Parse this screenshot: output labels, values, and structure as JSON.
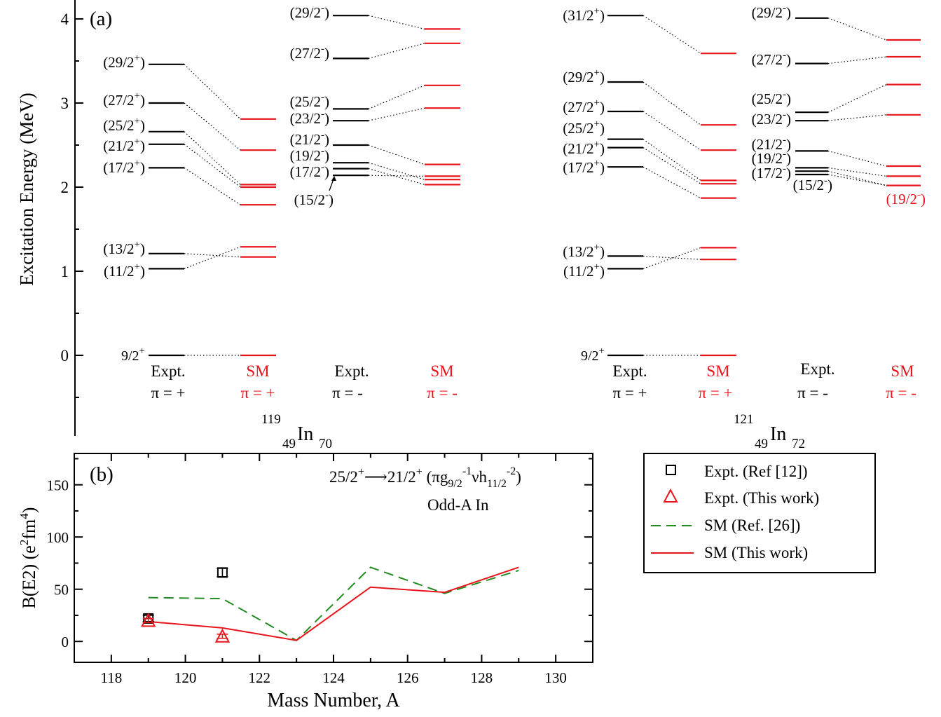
{
  "colors": {
    "expt": "#000000",
    "sm": "#e8141b",
    "sm_ref": "#228b22"
  },
  "panel_a": {
    "label": "(a)",
    "ylabel": "Excitation Energy (MeV)",
    "yticks": [
      "0",
      "1",
      "2",
      "3",
      "4"
    ],
    "ylim": [
      -0.85,
      4.2
    ],
    "nuclei": [
      {
        "A": "119",
        "Z": "49",
        "symbol": "In",
        "N": "70"
      },
      {
        "A": "121",
        "Z": "49",
        "symbol": "In",
        "N": "72"
      }
    ],
    "columns": [
      {
        "id": "in119-expt-pos",
        "name": "Expt.",
        "parity_label": "π = +",
        "type": "expt",
        "levels": [
          {
            "J": "9/2",
            "p": "+",
            "E": 0.0
          },
          {
            "J": "11/2",
            "p": "+",
            "E": 1.03
          },
          {
            "J": "13/2",
            "p": "+",
            "E": 1.21
          },
          {
            "J": "17/2",
            "p": "+",
            "E": 2.23
          },
          {
            "J": "21/2",
            "p": "+",
            "E": 2.51
          },
          {
            "J": "25/2",
            "p": "+",
            "E": 2.66
          },
          {
            "J": "27/2",
            "p": "+",
            "E": 3.0
          },
          {
            "J": "29/2",
            "p": "+",
            "E": 3.46
          }
        ]
      },
      {
        "id": "in119-sm-pos",
        "name": "SM",
        "parity_label": "π = +",
        "type": "sm",
        "levels": [
          {
            "E": 0.0
          },
          {
            "E": 1.17
          },
          {
            "E": 1.29
          },
          {
            "E": 1.79
          },
          {
            "E": 2.0
          },
          {
            "E": 2.03
          },
          {
            "E": 2.44
          },
          {
            "E": 2.81
          }
        ]
      },
      {
        "id": "in119-expt-neg",
        "name": "Expt.",
        "parity_label": "π = -",
        "type": "expt",
        "levels": [
          {
            "J": "15/2",
            "p": "-",
            "E": 2.14
          },
          {
            "J": "17/2",
            "p": "-",
            "E": 2.22
          },
          {
            "J": "19/2",
            "p": "-",
            "E": 2.29
          },
          {
            "J": "21/2",
            "p": "-",
            "E": 2.5
          },
          {
            "J": "23/2",
            "p": "-",
            "E": 2.79
          },
          {
            "J": "25/2",
            "p": "-",
            "E": 2.93
          },
          {
            "J": "27/2",
            "p": "-",
            "E": 3.53
          },
          {
            "J": "29/2",
            "p": "-",
            "E": 4.04
          }
        ]
      },
      {
        "id": "in119-sm-neg",
        "name": "SM",
        "parity_label": "π = -",
        "type": "sm",
        "levels": [
          {
            "E": 2.03
          },
          {
            "E": 2.09
          },
          {
            "E": 2.13
          },
          {
            "E": 2.27
          },
          {
            "E": 2.94
          },
          {
            "E": 3.21
          },
          {
            "E": 3.71
          },
          {
            "E": 3.88
          }
        ]
      },
      {
        "id": "in121-expt-pos",
        "name": "Expt.",
        "parity_label": "π = +",
        "type": "expt",
        "levels": [
          {
            "J": "9/2",
            "p": "+",
            "E": 0.0
          },
          {
            "J": "11/2",
            "p": "+",
            "E": 1.03
          },
          {
            "J": "13/2",
            "p": "+",
            "E": 1.18
          },
          {
            "J": "17/2",
            "p": "+",
            "E": 2.24
          },
          {
            "J": "21/2",
            "p": "+",
            "E": 2.47
          },
          {
            "J": "25/2",
            "p": "+",
            "E": 2.57
          },
          {
            "J": "27/2",
            "p": "+",
            "E": 2.9
          },
          {
            "J": "29/2",
            "p": "+",
            "E": 3.25
          },
          {
            "J": "31/2",
            "p": "+",
            "E": 4.04
          }
        ]
      },
      {
        "id": "in121-sm-pos",
        "name": "SM",
        "parity_label": "π = +",
        "type": "sm",
        "levels": [
          {
            "E": 0.0
          },
          {
            "E": 1.14
          },
          {
            "E": 1.28
          },
          {
            "E": 1.87
          },
          {
            "E": 2.04
          },
          {
            "E": 2.08
          },
          {
            "E": 2.44
          },
          {
            "E": 2.74
          },
          {
            "E": 3.59
          }
        ]
      },
      {
        "id": "in121-expt-neg",
        "name": "Expt.",
        "parity_label": "π = -",
        "type": "expt",
        "levels": [
          {
            "J": "15/2",
            "p": "-",
            "E": 2.15
          },
          {
            "J": "17/2",
            "p": "-",
            "E": 2.19
          },
          {
            "J": "19/2",
            "p": "-",
            "E": 2.23
          },
          {
            "J": "21/2",
            "p": "-",
            "E": 2.43
          },
          {
            "J": "23/2",
            "p": "-",
            "E": 2.79
          },
          {
            "J": "25/2",
            "p": "-",
            "E": 2.89
          },
          {
            "J": "27/2",
            "p": "-",
            "E": 3.47
          },
          {
            "J": "29/2",
            "p": "-",
            "E": 4.01
          }
        ]
      },
      {
        "id": "in121-sm-neg",
        "name": "SM",
        "parity_label": "π = -",
        "type": "sm",
        "levels": [
          {
            "E": 2.02
          },
          {
            "E": 2.13
          },
          {
            "E": 2.25
          },
          {
            "E": 2.86
          },
          {
            "E": 3.22
          },
          {
            "E": 3.55
          },
          {
            "E": 3.75
          }
        ]
      }
    ],
    "connections": [
      {
        "from": "in119-expt-pos",
        "to": "in119-sm-pos",
        "pairs": [
          [
            0,
            0
          ],
          [
            1,
            2
          ],
          [
            2,
            1
          ],
          [
            3,
            3
          ],
          [
            4,
            4
          ],
          [
            5,
            5
          ],
          [
            6,
            6
          ],
          [
            7,
            7
          ]
        ]
      },
      {
        "from": "in119-expt-neg",
        "to": "in119-sm-neg",
        "pairs": [
          [
            0,
            2
          ],
          [
            1,
            0
          ],
          [
            2,
            1
          ],
          [
            3,
            3
          ],
          [
            4,
            4
          ],
          [
            5,
            5
          ],
          [
            6,
            6
          ],
          [
            7,
            7
          ]
        ]
      },
      {
        "from": "in121-expt-pos",
        "to": "in121-sm-pos",
        "pairs": [
          [
            0,
            0
          ],
          [
            1,
            2
          ],
          [
            2,
            1
          ],
          [
            3,
            3
          ],
          [
            4,
            4
          ],
          [
            5,
            5
          ],
          [
            6,
            6
          ],
          [
            7,
            7
          ],
          [
            8,
            8
          ]
        ]
      },
      {
        "from": "in121-expt-neg",
        "to": "in121-sm-neg",
        "pairs": [
          [
            0,
            0
          ],
          [
            1,
            0
          ],
          [
            2,
            1
          ],
          [
            3,
            2
          ],
          [
            4,
            3
          ],
          [
            5,
            4
          ],
          [
            6,
            5
          ],
          [
            7,
            6
          ]
        ]
      }
    ],
    "sm_spin_label": {
      "J": "19/2",
      "p": "-"
    }
  },
  "chart_data": {
    "type": "scatter",
    "label": "(b)",
    "xlabel": "Mass Number, A",
    "ylabel": "B(E2) (e²fm⁴)",
    "xlim": [
      117,
      131
    ],
    "ylim": [
      -20,
      180
    ],
    "xticks": [
      118,
      120,
      122,
      124,
      126,
      128,
      130
    ],
    "yticks": [
      0,
      50,
      100,
      150
    ],
    "annotation": {
      "transition": "25/2⁺⟶21/2⁺",
      "config": "(πg₉/₂⁻¹νh₁₁/₂⁻²)",
      "subtitle": "Odd-A In"
    },
    "series": [
      {
        "name": "Expt. (Ref [12])",
        "kind": "marker-square",
        "color": "#000000",
        "points": [
          {
            "x": 119,
            "y": 22,
            "err": 3
          },
          {
            "x": 121,
            "y": 66,
            "err": 4
          }
        ]
      },
      {
        "name": "Expt. (This work)",
        "kind": "marker-triangle",
        "color": "#e8141b",
        "points": [
          {
            "x": 119,
            "y": 20,
            "err": 2
          },
          {
            "x": 121,
            "y": 5,
            "err": 2
          }
        ]
      },
      {
        "name": "SM (Ref. [26])",
        "kind": "dashed-line",
        "color": "#228b22",
        "points": [
          {
            "x": 119,
            "y": 42
          },
          {
            "x": 121,
            "y": 41
          },
          {
            "x": 123,
            "y": 1
          },
          {
            "x": 125,
            "y": 71
          },
          {
            "x": 127,
            "y": 46
          },
          {
            "x": 129,
            "y": 68
          }
        ]
      },
      {
        "name": "SM (This work)",
        "kind": "solid-line",
        "color": "#e8141b",
        "points": [
          {
            "x": 119,
            "y": 19
          },
          {
            "x": 121,
            "y": 13
          },
          {
            "x": 123,
            "y": 1
          },
          {
            "x": 125,
            "y": 52
          },
          {
            "x": 127,
            "y": 47
          },
          {
            "x": 129,
            "y": 71
          }
        ]
      }
    ]
  }
}
